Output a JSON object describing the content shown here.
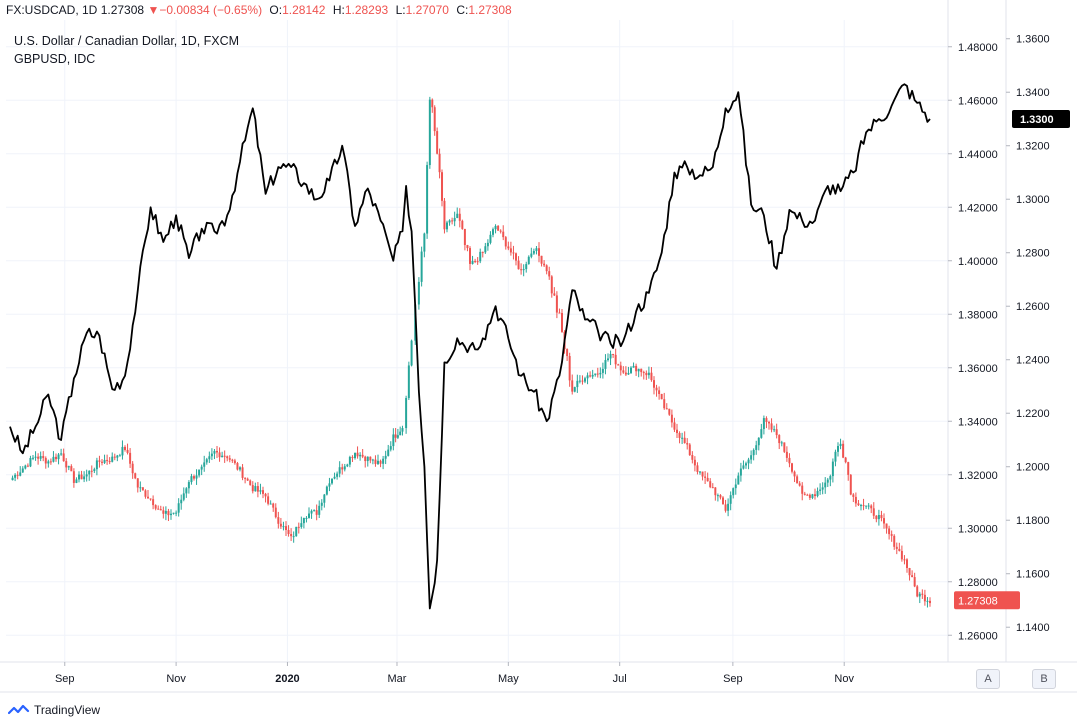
{
  "header": {
    "symbol": "FX:USDCAD, 1D",
    "last": "1.27308",
    "arrow": "▼",
    "change": "−0.00834 (−0.65%)",
    "o_label": "O:",
    "o_value": "1.28142",
    "h_label": "H:",
    "h_value": "1.28293",
    "l_label": "L:",
    "l_value": "1.27070",
    "c_label": "C:",
    "c_value": "1.27308"
  },
  "legend": {
    "main_series": "U.S. Dollar / Canadian Dollar, 1D, FXCM",
    "compare_series": "GBPUSD, IDC"
  },
  "colors": {
    "up": "#26a69a",
    "down": "#ef5350",
    "compare_line": "#000000",
    "grid": "#f0f3fa"
  },
  "axis_buttons": {
    "a": "A",
    "b": "B"
  },
  "footer": {
    "brand": "TradingView",
    "brand_icon": "tradingview-logo-icon"
  },
  "chart_data": {
    "type": "line",
    "x_labels": [
      "Sep",
      "Nov",
      "2020",
      "Mar",
      "May",
      "Jul",
      "Sep",
      "Nov"
    ],
    "x_label_dates": [
      "2019-09-01",
      "2019-11-01",
      "2020-01-01",
      "2020-03-01",
      "2020-05-01",
      "2020-07-01",
      "2020-09-01",
      "2020-11-01"
    ],
    "x_range": [
      "2019-08-02",
      "2020-12-18"
    ],
    "left_axis": {
      "series": "USDCAD",
      "ylim": [
        1.25,
        1.49
      ],
      "ticks": [
        "1.48000",
        "1.46000",
        "1.44000",
        "1.42000",
        "1.40000",
        "1.38000",
        "1.36000",
        "1.34000",
        "1.32000",
        "1.30000",
        "1.28000",
        "1.26000"
      ],
      "last_value_label": "1.27308"
    },
    "right_axis": {
      "series": "GBPUSD",
      "ylim": [
        1.127,
        1.367
      ],
      "ticks": [
        "1.3600",
        "1.3400",
        "1.3200",
        "1.3000",
        "1.2800",
        "1.2600",
        "1.2400",
        "1.2200",
        "1.2000",
        "1.1800",
        "1.1600",
        "1.1400"
      ],
      "last_value_label": "1.3300"
    },
    "series": [
      {
        "name": "U.S. Dollar / Canadian Dollar, 1D, FXCM",
        "style": "candles",
        "points": [
          [
            "2019-08-02",
            1.318
          ],
          [
            "2019-08-09",
            1.3225
          ],
          [
            "2019-08-16",
            1.327
          ],
          [
            "2019-08-23",
            1.325
          ],
          [
            "2019-08-30",
            1.328
          ],
          [
            "2019-09-06",
            1.318
          ],
          [
            "2019-09-13",
            1.32
          ],
          [
            "2019-09-20",
            1.325
          ],
          [
            "2019-09-27",
            1.326
          ],
          [
            "2019-10-04",
            1.33
          ],
          [
            "2019-10-11",
            1.3155
          ],
          [
            "2019-10-18",
            1.311
          ],
          [
            "2019-10-25",
            1.305
          ],
          [
            "2019-11-01",
            1.306
          ],
          [
            "2019-11-08",
            1.318
          ],
          [
            "2019-11-15",
            1.322
          ],
          [
            "2019-11-22",
            1.3285
          ],
          [
            "2019-11-29",
            1.327
          ],
          [
            "2019-12-06",
            1.3215
          ],
          [
            "2019-12-13",
            1.315
          ],
          [
            "2019-12-20",
            1.312
          ],
          [
            "2019-12-27",
            1.303
          ],
          [
            "2020-01-03",
            1.296
          ],
          [
            "2020-01-10",
            1.305
          ],
          [
            "2020-01-17",
            1.306
          ],
          [
            "2020-01-24",
            1.318
          ],
          [
            "2020-01-31",
            1.323
          ],
          [
            "2020-02-07",
            1.3285
          ],
          [
            "2020-02-14",
            1.326
          ],
          [
            "2020-02-21",
            1.3235
          ],
          [
            "2020-02-28",
            1.334
          ],
          [
            "2020-03-04",
            1.338
          ],
          [
            "2020-03-06",
            1.35
          ],
          [
            "2020-03-09",
            1.3705
          ],
          [
            "2020-03-11",
            1.384
          ],
          [
            "2020-03-13",
            1.392
          ],
          [
            "2020-03-16",
            1.41
          ],
          [
            "2020-03-19",
            1.4625
          ],
          [
            "2020-03-23",
            1.44
          ],
          [
            "2020-03-27",
            1.412
          ],
          [
            "2020-04-03",
            1.417
          ],
          [
            "2020-04-10",
            1.398
          ],
          [
            "2020-04-17",
            1.403
          ],
          [
            "2020-04-24",
            1.413
          ],
          [
            "2020-05-01",
            1.405
          ],
          [
            "2020-05-08",
            1.396
          ],
          [
            "2020-05-15",
            1.405
          ],
          [
            "2020-05-22",
            1.397
          ],
          [
            "2020-05-29",
            1.378
          ],
          [
            "2020-06-05",
            1.352
          ],
          [
            "2020-06-12",
            1.357
          ],
          [
            "2020-06-19",
            1.358
          ],
          [
            "2020-06-26",
            1.365
          ],
          [
            "2020-07-03",
            1.3585
          ],
          [
            "2020-07-10",
            1.36
          ],
          [
            "2020-07-17",
            1.3575
          ],
          [
            "2020-07-24",
            1.347
          ],
          [
            "2020-07-31",
            1.338
          ],
          [
            "2020-08-07",
            1.33
          ],
          [
            "2020-08-14",
            1.32
          ],
          [
            "2020-08-21",
            1.315
          ],
          [
            "2020-08-28",
            1.307
          ],
          [
            "2020-09-04",
            1.32
          ],
          [
            "2020-09-11",
            1.327
          ],
          [
            "2020-09-18",
            1.34
          ],
          [
            "2020-09-25",
            1.335
          ],
          [
            "2020-10-02",
            1.325
          ],
          [
            "2020-10-09",
            1.312
          ],
          [
            "2020-10-16",
            1.313
          ],
          [
            "2020-10-23",
            1.318
          ],
          [
            "2020-10-30",
            1.334
          ],
          [
            "2020-11-06",
            1.311
          ],
          [
            "2020-11-13",
            1.308
          ],
          [
            "2020-11-20",
            1.304
          ],
          [
            "2020-11-27",
            1.296
          ],
          [
            "2020-12-04",
            1.288
          ],
          [
            "2020-12-11",
            1.2755
          ],
          [
            "2020-12-18",
            1.27308
          ]
        ]
      },
      {
        "name": "GBPUSD, IDC",
        "style": "line",
        "points": [
          [
            "2019-08-02",
            1.215
          ],
          [
            "2019-08-09",
            1.205
          ],
          [
            "2019-08-16",
            1.215
          ],
          [
            "2019-08-23",
            1.227
          ],
          [
            "2019-08-30",
            1.21
          ],
          [
            "2019-09-06",
            1.233
          ],
          [
            "2019-09-13",
            1.25
          ],
          [
            "2019-09-20",
            1.249
          ],
          [
            "2019-09-27",
            1.229
          ],
          [
            "2019-10-04",
            1.234
          ],
          [
            "2019-10-11",
            1.266
          ],
          [
            "2019-10-18",
            1.297
          ],
          [
            "2019-10-25",
            1.284
          ],
          [
            "2019-11-01",
            1.294
          ],
          [
            "2019-11-08",
            1.278
          ],
          [
            "2019-11-15",
            1.289
          ],
          [
            "2019-11-22",
            1.288
          ],
          [
            "2019-11-29",
            1.294
          ],
          [
            "2019-12-06",
            1.314
          ],
          [
            "2019-12-13",
            1.334
          ],
          [
            "2019-12-20",
            1.302
          ],
          [
            "2019-12-27",
            1.312
          ],
          [
            "2020-01-03",
            1.312
          ],
          [
            "2020-01-10",
            1.306
          ],
          [
            "2020-01-17",
            1.3
          ],
          [
            "2020-01-24",
            1.307
          ],
          [
            "2020-01-31",
            1.32
          ],
          [
            "2020-02-07",
            1.29
          ],
          [
            "2020-02-14",
            1.304
          ],
          [
            "2020-02-21",
            1.292
          ],
          [
            "2020-02-28",
            1.277
          ],
          [
            "2020-03-04",
            1.288
          ],
          [
            "2020-03-06",
            1.305
          ],
          [
            "2020-03-09",
            1.288
          ],
          [
            "2020-03-11",
            1.26
          ],
          [
            "2020-03-13",
            1.228
          ],
          [
            "2020-03-16",
            1.2
          ],
          [
            "2020-03-19",
            1.147
          ],
          [
            "2020-03-23",
            1.165
          ],
          [
            "2020-03-27",
            1.239
          ],
          [
            "2020-04-03",
            1.248
          ],
          [
            "2020-04-10",
            1.245
          ],
          [
            "2020-04-17",
            1.248
          ],
          [
            "2020-04-24",
            1.26
          ],
          [
            "2020-05-01",
            1.248
          ],
          [
            "2020-05-08",
            1.234
          ],
          [
            "2020-05-15",
            1.228
          ],
          [
            "2020-05-22",
            1.217
          ],
          [
            "2020-05-29",
            1.234
          ],
          [
            "2020-06-05",
            1.266
          ],
          [
            "2020-06-12",
            1.255
          ],
          [
            "2020-06-19",
            1.251
          ],
          [
            "2020-06-26",
            1.246
          ],
          [
            "2020-07-03",
            1.247
          ],
          [
            "2020-07-10",
            1.258
          ],
          [
            "2020-07-17",
            1.265
          ],
          [
            "2020-07-24",
            1.28
          ],
          [
            "2020-07-31",
            1.31
          ],
          [
            "2020-08-07",
            1.312
          ],
          [
            "2020-08-14",
            1.309
          ],
          [
            "2020-08-21",
            1.312
          ],
          [
            "2020-08-28",
            1.334
          ],
          [
            "2020-09-04",
            1.34
          ],
          [
            "2020-09-11",
            1.298
          ],
          [
            "2020-09-18",
            1.294
          ],
          [
            "2020-09-25",
            1.274
          ],
          [
            "2020-10-02",
            1.296
          ],
          [
            "2020-10-09",
            1.292
          ],
          [
            "2020-10-16",
            1.292
          ],
          [
            "2020-10-23",
            1.305
          ],
          [
            "2020-10-30",
            1.303
          ],
          [
            "2020-11-06",
            1.31
          ],
          [
            "2020-11-13",
            1.325
          ],
          [
            "2020-11-20",
            1.33
          ],
          [
            "2020-11-27",
            1.335
          ],
          [
            "2020-12-04",
            1.343
          ],
          [
            "2020-12-11",
            1.336
          ],
          [
            "2020-12-18",
            1.33
          ]
        ]
      }
    ],
    "grid": true,
    "legend_position": "top-left"
  }
}
